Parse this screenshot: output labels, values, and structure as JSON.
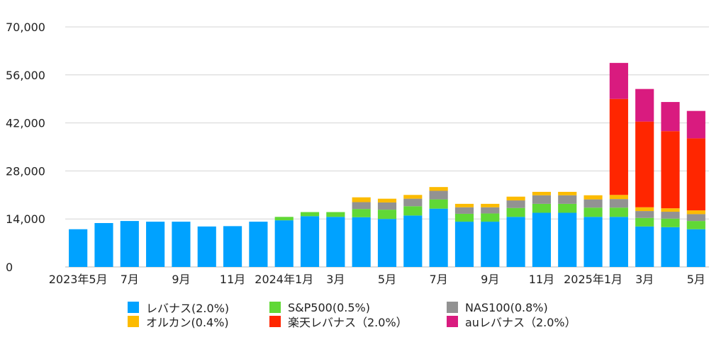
{
  "chart_data": {
    "type": "bar",
    "stacked": true,
    "categories": [
      "2023年5月",
      "2023-06",
      "7月",
      "2023-08",
      "9月",
      "2023-10",
      "11月",
      "2023-12",
      "2024年1月",
      "2024-02",
      "3月",
      "2024-04",
      "5月",
      "2024-06",
      "7月",
      "2024-08",
      "9月",
      "2024-10",
      "11月",
      "2024-12",
      "2025年1月",
      "2025-02",
      "3月",
      "2025-04",
      "5月"
    ],
    "tick_labels": [
      "2023年5月",
      "",
      "7月",
      "",
      "9月",
      "",
      "11月",
      "",
      "2024年1月",
      "",
      "3月",
      "",
      "5月",
      "",
      "7月",
      "",
      "9月",
      "",
      "11月",
      "",
      "2025年1月",
      "",
      "3月",
      "",
      "5月"
    ],
    "ylim": [
      0,
      70000
    ],
    "yticks": [
      "0",
      "14,000",
      "28,000",
      "42,000",
      "56,000",
      "70,000"
    ],
    "ytick_values": [
      0,
      14000,
      28000,
      42000,
      56000,
      70000
    ],
    "grid": true,
    "legend_position": "bottom",
    "series": [
      {
        "name": "レバナス(2.0%)",
        "color": "#00a2ff",
        "values": [
          11000,
          12800,
          13400,
          13200,
          13200,
          11800,
          11900,
          13200,
          13600,
          14800,
          14600,
          14500,
          14000,
          15000,
          17000,
          13200,
          13200,
          14600,
          15800,
          15800,
          14600,
          14600,
          11800,
          11600,
          11000
        ]
      },
      {
        "name": "S&P500(0.5%)",
        "color": "#60d836",
        "values": [
          0,
          0,
          0,
          0,
          0,
          0,
          0,
          0,
          1000,
          1200,
          1400,
          2400,
          2700,
          2700,
          2700,
          2300,
          2400,
          2600,
          2600,
          2600,
          2700,
          2700,
          2500,
          2500,
          2400
        ]
      },
      {
        "name": "NAS100(0.8%)",
        "color": "#929292",
        "values": [
          0,
          0,
          0,
          0,
          0,
          0,
          0,
          0,
          0,
          0,
          0,
          2000,
          2100,
          2200,
          2500,
          1900,
          1800,
          2200,
          2500,
          2500,
          2400,
          2500,
          2000,
          2000,
          2000
        ]
      },
      {
        "name": "オルカン(0.4%)",
        "color": "#fcbb00",
        "values": [
          0,
          0,
          0,
          0,
          0,
          0,
          0,
          0,
          0,
          0,
          0,
          1400,
          1100,
          1100,
          1100,
          1000,
          1000,
          1100,
          1000,
          1000,
          1200,
          1200,
          1100,
          1000,
          1100
        ]
      },
      {
        "name": "楽天レバナス（2.0%）",
        "color": "#ff2600",
        "values": [
          0,
          0,
          0,
          0,
          0,
          0,
          0,
          0,
          0,
          0,
          0,
          0,
          0,
          0,
          0,
          0,
          0,
          0,
          0,
          0,
          0,
          28000,
          25000,
          22500,
          21000
        ]
      },
      {
        "name": "auレバナス（2.0%）",
        "color": "#d91b7f",
        "values": [
          0,
          0,
          0,
          0,
          0,
          0,
          0,
          0,
          0,
          0,
          0,
          0,
          0,
          0,
          0,
          0,
          0,
          0,
          0,
          0,
          0,
          10500,
          9500,
          8500,
          8000
        ]
      }
    ]
  }
}
